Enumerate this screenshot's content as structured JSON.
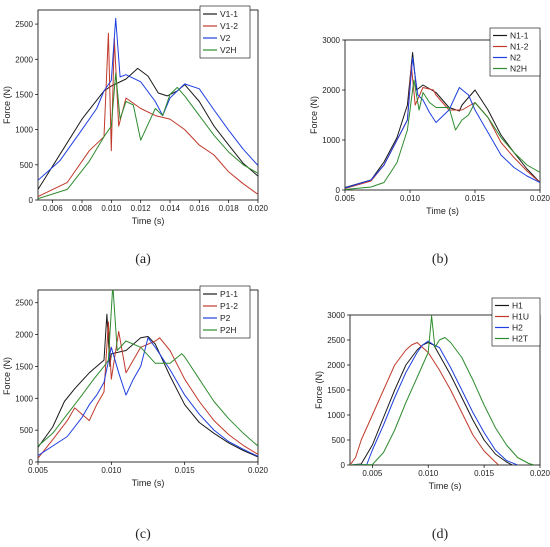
{
  "panel_labels": [
    "(a)",
    "(b)",
    "(c)",
    "(d)"
  ],
  "chart_data": [
    {
      "panel": "(a)",
      "type": "line",
      "xlabel": "Time (s)",
      "ylabel": "Force (N)",
      "xlim": [
        0.005,
        0.02
      ],
      "ylim": [
        0,
        2700
      ],
      "xticks": [
        0.006,
        0.008,
        0.01,
        0.012,
        0.014,
        0.016,
        0.018,
        0.02
      ],
      "yticks": [
        0,
        500,
        1000,
        1500,
        2000,
        2500
      ],
      "legend": "top-right",
      "series": [
        {
          "name": "V1-1",
          "color": "#1a1a1a",
          "x": [
            0.005,
            0.0065,
            0.008,
            0.0095,
            0.01,
            0.011,
            0.0118,
            0.0125,
            0.0132,
            0.0138,
            0.0145,
            0.015,
            0.016,
            0.017,
            0.018,
            0.019,
            0.02
          ],
          "y": [
            150,
            650,
            1150,
            1550,
            1620,
            1720,
            1870,
            1760,
            1520,
            1480,
            1550,
            1640,
            1400,
            1050,
            780,
            520,
            340
          ]
        },
        {
          "name": "V1-2",
          "color": "#c0392b",
          "x": [
            0.005,
            0.007,
            0.0085,
            0.0095,
            0.0098,
            0.01,
            0.0102,
            0.0105,
            0.011,
            0.012,
            0.013,
            0.014,
            0.015,
            0.016,
            0.017,
            0.018,
            0.019,
            0.02
          ],
          "y": [
            50,
            250,
            700,
            900,
            2370,
            700,
            2300,
            1050,
            1450,
            1300,
            1200,
            1150,
            1000,
            780,
            640,
            400,
            230,
            80
          ]
        },
        {
          "name": "V2",
          "color": "#1f3fe0",
          "x": [
            0.005,
            0.0065,
            0.008,
            0.009,
            0.0095,
            0.01,
            0.0103,
            0.0106,
            0.011,
            0.012,
            0.013,
            0.0135,
            0.014,
            0.015,
            0.016,
            0.017,
            0.018,
            0.019,
            0.02
          ],
          "y": [
            280,
            560,
            1000,
            1300,
            1550,
            1700,
            2580,
            1750,
            1780,
            1680,
            1400,
            1200,
            1450,
            1650,
            1580,
            1280,
            990,
            720,
            490
          ]
        },
        {
          "name": "V2H",
          "color": "#2e8b2e",
          "x": [
            0.005,
            0.007,
            0.0085,
            0.0095,
            0.01,
            0.0103,
            0.0106,
            0.011,
            0.0115,
            0.012,
            0.013,
            0.0135,
            0.014,
            0.0145,
            0.015,
            0.016,
            0.017,
            0.018,
            0.019,
            0.02
          ],
          "y": [
            20,
            150,
            550,
            900,
            1050,
            1800,
            1150,
            1400,
            1350,
            850,
            1300,
            1200,
            1500,
            1600,
            1480,
            1200,
            920,
            680,
            500,
            380
          ]
        }
      ]
    },
    {
      "panel": "(b)",
      "type": "line",
      "xlabel": "Time (s)",
      "ylabel": "Force (N)",
      "xlim": [
        0.005,
        0.02
      ],
      "ylim": [
        0,
        3000
      ],
      "xticks": [
        0.005,
        0.01,
        0.015,
        0.02
      ],
      "yticks": [
        0,
        1000,
        2000,
        3000
      ],
      "legend": "top-right",
      "series": [
        {
          "name": "N1-1",
          "color": "#1a1a1a",
          "x": [
            0.005,
            0.007,
            0.008,
            0.009,
            0.0098,
            0.0102,
            0.0105,
            0.011,
            0.012,
            0.013,
            0.0138,
            0.014,
            0.015,
            0.016,
            0.017,
            0.018,
            0.019,
            0.02
          ],
          "y": [
            50,
            200,
            560,
            1050,
            1700,
            2750,
            2000,
            2100,
            1950,
            1650,
            1580,
            1700,
            2000,
            1600,
            1100,
            750,
            420,
            150
          ]
        },
        {
          "name": "N1-2",
          "color": "#c0392b",
          "x": [
            0.005,
            0.007,
            0.008,
            0.009,
            0.0098,
            0.0101,
            0.0104,
            0.011,
            0.0118,
            0.012,
            0.013,
            0.014,
            0.015,
            0.016,
            0.017,
            0.018,
            0.019,
            0.02
          ],
          "y": [
            30,
            180,
            500,
            1000,
            1400,
            2500,
            1700,
            2050,
            2000,
            1900,
            1600,
            1600,
            1750,
            1450,
            950,
            650,
            380,
            150
          ]
        },
        {
          "name": "N2",
          "color": "#1f3fe0",
          "x": [
            0.005,
            0.007,
            0.008,
            0.009,
            0.0098,
            0.0102,
            0.0106,
            0.011,
            0.0115,
            0.012,
            0.013,
            0.0138,
            0.0145,
            0.015,
            0.016,
            0.017,
            0.018,
            0.019,
            0.02
          ],
          "y": [
            40,
            200,
            500,
            1000,
            1400,
            2650,
            1900,
            1800,
            1550,
            1350,
            1600,
            2050,
            1900,
            1600,
            1150,
            700,
            450,
            280,
            150
          ]
        },
        {
          "name": "N2H",
          "color": "#2e8b2e",
          "x": [
            0.005,
            0.007,
            0.008,
            0.009,
            0.0098,
            0.0103,
            0.0107,
            0.011,
            0.0115,
            0.012,
            0.013,
            0.0135,
            0.014,
            0.0145,
            0.015,
            0.016,
            0.017,
            0.018,
            0.019,
            0.02
          ],
          "y": [
            10,
            60,
            150,
            550,
            1200,
            2200,
            1600,
            1950,
            1750,
            1650,
            1650,
            1200,
            1400,
            1500,
            1750,
            1450,
            1050,
            750,
            500,
            350
          ]
        }
      ]
    },
    {
      "panel": "(c)",
      "type": "line",
      "xlabel": "Time (s)",
      "ylabel": "Force (N)",
      "xlim": [
        0.005,
        0.02
      ],
      "ylim": [
        0,
        2700
      ],
      "xticks": [
        0.005,
        0.01,
        0.015,
        0.02
      ],
      "yticks": [
        0,
        500,
        1000,
        1500,
        2000,
        2500
      ],
      "legend": "top-right",
      "series": [
        {
          "name": "P1-1",
          "color": "#1a1a1a",
          "x": [
            0.005,
            0.006,
            0.0068,
            0.0075,
            0.0085,
            0.0095,
            0.0097,
            0.0099,
            0.01,
            0.011,
            0.012,
            0.0125,
            0.013,
            0.014,
            0.015,
            0.016,
            0.017,
            0.018,
            0.019,
            0.02
          ],
          "y": [
            230,
            550,
            950,
            1150,
            1400,
            1600,
            2320,
            1500,
            1700,
            1750,
            1950,
            1970,
            1850,
            1350,
            900,
            620,
            450,
            300,
            180,
            80
          ]
        },
        {
          "name": "P1-2",
          "color": "#c0392b",
          "x": [
            0.005,
            0.006,
            0.007,
            0.0075,
            0.008,
            0.0085,
            0.009,
            0.0095,
            0.0098,
            0.01,
            0.0105,
            0.011,
            0.012,
            0.013,
            0.0133,
            0.014,
            0.015,
            0.016,
            0.017,
            0.018,
            0.019,
            0.02
          ],
          "y": [
            60,
            350,
            650,
            850,
            750,
            650,
            900,
            1100,
            2200,
            1300,
            2050,
            1400,
            1800,
            1900,
            1950,
            1750,
            1300,
            950,
            650,
            430,
            260,
            120
          ]
        },
        {
          "name": "P2",
          "color": "#1f3fe0",
          "x": [
            0.005,
            0.007,
            0.008,
            0.0085,
            0.009,
            0.0095,
            0.01,
            0.0105,
            0.011,
            0.0115,
            0.012,
            0.0125,
            0.013,
            0.014,
            0.015,
            0.016,
            0.017,
            0.018,
            0.019,
            0.02
          ],
          "y": [
            100,
            400,
            700,
            900,
            1050,
            1250,
            1800,
            1400,
            1050,
            1300,
            1500,
            1950,
            1800,
            1450,
            1050,
            750,
            500,
            320,
            200,
            90
          ]
        },
        {
          "name": "P2H",
          "color": "#2e8b2e",
          "x": [
            0.005,
            0.006,
            0.007,
            0.008,
            0.0088,
            0.0095,
            0.0098,
            0.0101,
            0.0104,
            0.011,
            0.012,
            0.013,
            0.014,
            0.0148,
            0.015,
            0.016,
            0.017,
            0.018,
            0.019,
            0.02
          ],
          "y": [
            250,
            450,
            750,
            1050,
            1300,
            1500,
            1600,
            2780,
            1750,
            1900,
            1800,
            1550,
            1550,
            1700,
            1650,
            1300,
            950,
            680,
            450,
            250
          ]
        }
      ]
    },
    {
      "panel": "(d)",
      "type": "line",
      "xlabel": "Time (s)",
      "ylabel": "Force (N)",
      "xlim": [
        0.003,
        0.02
      ],
      "ylim": [
        0,
        3000
      ],
      "xticks": [
        0.005,
        0.01,
        0.015,
        0.02
      ],
      "yticks": [
        0,
        500,
        1000,
        1500,
        2000,
        2500,
        3000
      ],
      "legend": "top-right",
      "series": [
        {
          "name": "H1",
          "color": "#1a1a1a",
          "x": [
            0.003,
            0.004,
            0.005,
            0.006,
            0.007,
            0.008,
            0.009,
            0.0095,
            0.01,
            0.0105,
            0.011,
            0.012,
            0.013,
            0.014,
            0.015,
            0.016,
            0.017,
            0.0175
          ],
          "y": [
            0,
            20,
            400,
            950,
            1500,
            2000,
            2300,
            2400,
            2450,
            2400,
            2200,
            1800,
            1350,
            900,
            500,
            220,
            60,
            0
          ]
        },
        {
          "name": "H1U",
          "color": "#c0392b",
          "x": [
            0.003,
            0.0035,
            0.004,
            0.005,
            0.006,
            0.007,
            0.008,
            0.0085,
            0.009,
            0.0095,
            0.01,
            0.011,
            0.012,
            0.013,
            0.014,
            0.015,
            0.016,
            0.0163
          ],
          "y": [
            0,
            150,
            500,
            1000,
            1500,
            2000,
            2300,
            2400,
            2450,
            2350,
            2250,
            1900,
            1500,
            1050,
            600,
            280,
            60,
            0
          ]
        },
        {
          "name": "H2",
          "color": "#1f3fe0",
          "x": [
            0.003,
            0.0045,
            0.005,
            0.006,
            0.007,
            0.008,
            0.009,
            0.0095,
            0.01,
            0.0105,
            0.011,
            0.012,
            0.013,
            0.014,
            0.015,
            0.016,
            0.017,
            0.018
          ],
          "y": [
            0,
            10,
            300,
            800,
            1350,
            1850,
            2250,
            2400,
            2480,
            2400,
            2350,
            1950,
            1500,
            1050,
            650,
            300,
            90,
            0
          ]
        },
        {
          "name": "H2T",
          "color": "#2e8b2e",
          "x": [
            0.003,
            0.005,
            0.006,
            0.007,
            0.008,
            0.009,
            0.01,
            0.0103,
            0.0106,
            0.011,
            0.0115,
            0.012,
            0.013,
            0.014,
            0.015,
            0.016,
            0.017,
            0.018,
            0.019,
            0.0195
          ],
          "y": [
            0,
            10,
            250,
            700,
            1250,
            1750,
            2250,
            2980,
            2350,
            2500,
            2550,
            2450,
            2150,
            1700,
            1200,
            750,
            400,
            150,
            30,
            0
          ]
        }
      ]
    }
  ]
}
